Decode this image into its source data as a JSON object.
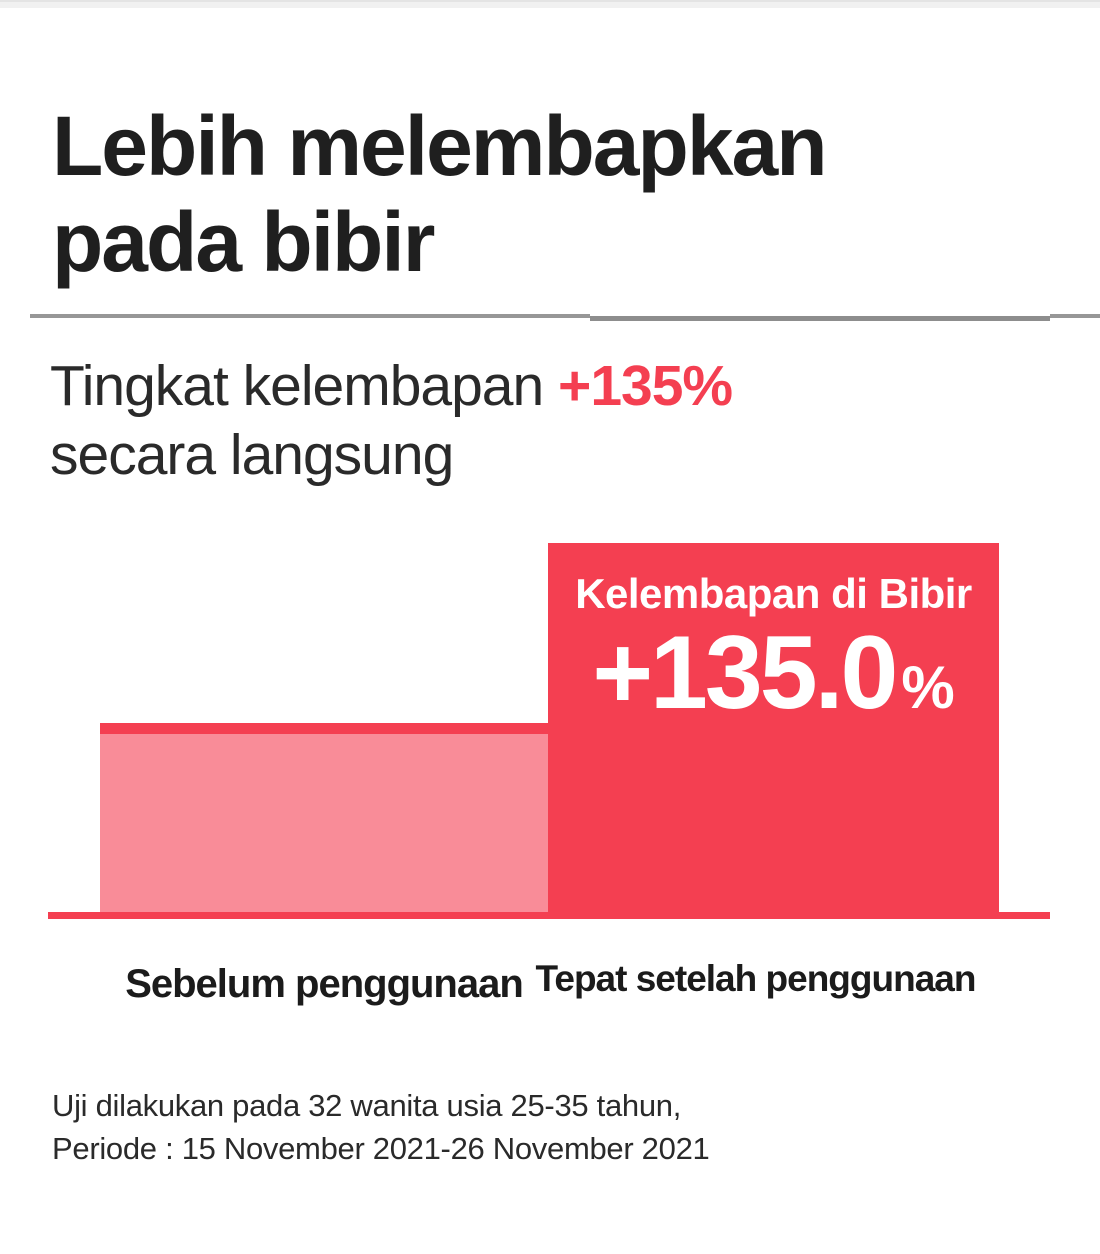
{
  "header": {
    "title_line1": "Lebih melembapkan",
    "title_line2": "pada bibir"
  },
  "subtitle": {
    "prefix": "Tingkat kelembapan ",
    "highlight": "+135%",
    "line2": "secara langsung"
  },
  "chart": {
    "callout": {
      "label": "Kelembapan di Bibir",
      "value": "+135.0",
      "unit": "%"
    }
  },
  "chart_data": {
    "type": "bar",
    "title": "Lebih melembapkan pada bibir",
    "subtitle": "Tingkat kelembapan +135% secara langsung",
    "categories": [
      "Sebelum penggunaan",
      "Tepat setelah penggunaan"
    ],
    "series": [
      {
        "name": "Kelembapan di Bibir",
        "values": [
          100,
          235
        ]
      }
    ],
    "value_unit": "relative moisture level, before use = 100",
    "increase_percent": 135.0,
    "data_label_on_after_bar": "Kelembapan di Bibir +135.0%",
    "bar_colors": [
      "#f98c98",
      "#f43f51"
    ],
    "layout_hints": {
      "gridlines": false,
      "y_axis_visible": false,
      "x_axis_baseline_color": "#f43f51",
      "before_bar_top_cap_color": "#f43f51",
      "legend": "none"
    }
  },
  "footnote": {
    "line1": "Uji dilakukan pada 32 wanita usia 25-35 tahun,",
    "line2": "Periode : 15 November 2021-26 November 2021"
  },
  "colors": {
    "accent_red": "#f43f51",
    "light_pink": "#f98c98",
    "text_dark": "#1f1f1f",
    "divider_gray": "#919191",
    "top_strip_gray": "#f1f1f1"
  }
}
